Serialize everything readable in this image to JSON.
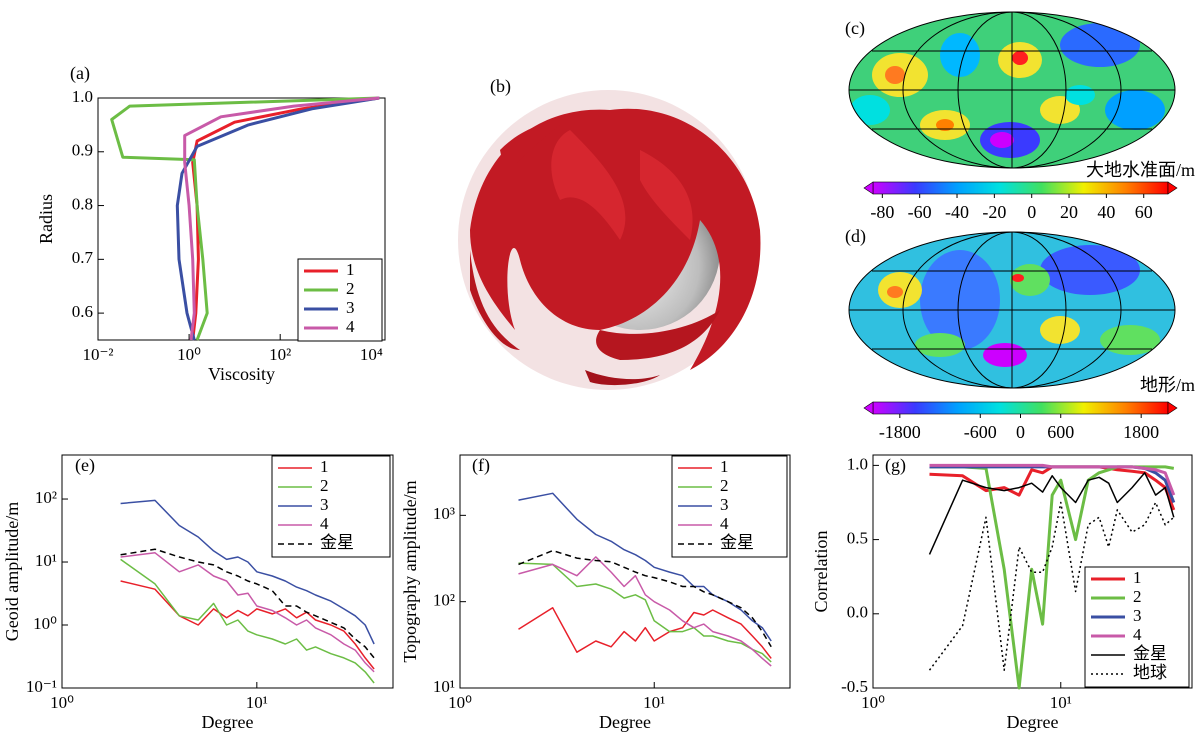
{
  "chart_data": [
    {
      "type": "line",
      "label": "(a)",
      "xlabel": "Viscosity",
      "ylabel": "Radius",
      "xscale": "log",
      "xlim": [
        0.01,
        20000
      ],
      "ylim": [
        0.55,
        1.0
      ],
      "xticks": [
        {
          "value": 0.01,
          "label": "10⁻²"
        },
        {
          "value": 1,
          "label": "10⁰"
        },
        {
          "value": 100,
          "label": "10²"
        },
        {
          "value": 10000,
          "label": "10⁴"
        }
      ],
      "yticks": [
        0.6,
        0.7,
        0.8,
        0.9,
        {
          "value": 1.0,
          "label": "1.0"
        }
      ],
      "legend": "lower right",
      "series": [
        {
          "name": "1",
          "color": "#e8202a",
          "linewidth": 3,
          "x": [
            1.2,
            1.4,
            1.6,
            1.5,
            1.2,
            1.5,
            10,
            300,
            15000
          ],
          "values": [
            0.55,
            0.6,
            0.7,
            0.8,
            0.88,
            0.92,
            0.955,
            0.98,
            1.0
          ]
        },
        {
          "name": "2",
          "color": "#6cbd45",
          "linewidth": 3,
          "x": [
            1.5,
            2.5,
            2.0,
            1.5,
            1.3,
            0.035,
            0.02,
            0.05,
            15000
          ],
          "values": [
            0.55,
            0.6,
            0.7,
            0.8,
            0.885,
            0.89,
            0.96,
            0.985,
            1.0
          ]
        },
        {
          "name": "3",
          "color": "#3a4fa3",
          "linewidth": 3,
          "x": [
            1.3,
            0.9,
            0.6,
            0.55,
            0.7,
            1.5,
            20,
            500,
            15000
          ],
          "values": [
            0.55,
            0.6,
            0.7,
            0.8,
            0.86,
            0.91,
            0.95,
            0.98,
            1.0
          ]
        },
        {
          "name": "4",
          "color": "#c85aa8",
          "linewidth": 3,
          "x": [
            1.1,
            1.3,
            1.2,
            1.0,
            0.8,
            0.8,
            5,
            200,
            15000
          ],
          "values": [
            0.55,
            0.6,
            0.7,
            0.8,
            0.88,
            0.93,
            0.965,
            0.985,
            1.0
          ]
        }
      ]
    },
    {
      "type": "image",
      "label": "(b)"
    },
    {
      "type": "map",
      "label": "(c)",
      "colorbar_label": "大地水准面/m",
      "cblim": [
        -85,
        73
      ],
      "cbticks": [
        -80,
        -60,
        -40,
        -20,
        0,
        20,
        40,
        60
      ],
      "colors": [
        "#cc00ff",
        "#3a3aff",
        "#00a0ff",
        "#00e0e0",
        "#40e060",
        "#f0f000",
        "#ff8000",
        "#ff0000"
      ]
    },
    {
      "type": "map",
      "label": "(d)",
      "colorbar_label": "地形/m",
      "cblim": [
        -2200,
        2200
      ],
      "cbticks": [
        -1800,
        -600,
        0,
        600,
        1800
      ],
      "colors": [
        "#cc00ff",
        "#3a3aff",
        "#00a0ff",
        "#00e0e0",
        "#40e060",
        "#f0f000",
        "#ff8000",
        "#ff0000"
      ]
    },
    {
      "type": "line",
      "label": "(e)",
      "xlabel": "Degree",
      "ylabel": "Geoid amplitude/m",
      "xscale": "log",
      "yscale": "log",
      "xlim": [
        1,
        50
      ],
      "ylim": [
        0.1,
        500
      ],
      "xticks": [
        {
          "value": 1,
          "label": "10⁰"
        },
        {
          "value": 10,
          "label": "10¹"
        }
      ],
      "yticks": [
        {
          "value": 0.1,
          "label": "10⁻¹"
        },
        {
          "value": 1,
          "label": "10⁰"
        },
        {
          "value": 10,
          "label": "10¹"
        },
        {
          "value": 100,
          "label": "10²"
        }
      ],
      "legend": "upper right",
      "x": [
        2,
        3,
        4,
        5,
        6,
        7,
        8,
        9,
        10,
        12,
        14,
        16,
        18,
        20,
        24,
        28,
        32,
        36,
        40
      ],
      "series": [
        {
          "name": "1",
          "color": "#e8202a",
          "linewidth": 1.5,
          "values": [
            5,
            3.7,
            1.4,
            1.0,
            1.8,
            1.3,
            1.7,
            1.4,
            1.8,
            1.5,
            1.8,
            1.3,
            1.6,
            1.2,
            1.0,
            0.8,
            0.5,
            0.3,
            0.2
          ]
        },
        {
          "name": "2",
          "color": "#6cbd45",
          "linewidth": 1.5,
          "values": [
            11,
            4.5,
            1.4,
            1.2,
            2.2,
            1.0,
            1.2,
            0.8,
            0.7,
            0.6,
            0.5,
            0.6,
            0.4,
            0.45,
            0.35,
            0.3,
            0.25,
            0.18,
            0.12
          ]
        },
        {
          "name": "3",
          "color": "#3a4fa3",
          "linewidth": 1.5,
          "values": [
            85,
            95,
            38,
            25,
            15,
            11,
            12,
            10,
            7,
            6,
            5,
            4,
            3.5,
            3,
            2.4,
            1.8,
            1.4,
            1.0,
            0.5
          ]
        },
        {
          "name": "4",
          "color": "#c85aa8",
          "linewidth": 1.5,
          "values": [
            12,
            14,
            7,
            9,
            6,
            5,
            3,
            3.2,
            2,
            1.7,
            1.3,
            1.0,
            1.2,
            0.9,
            0.7,
            0.5,
            0.4,
            0.25,
            0.18
          ]
        },
        {
          "name": "金星",
          "color": "#000000",
          "linewidth": 1.5,
          "dash": "dashed",
          "values": [
            13,
            16,
            12,
            10,
            9,
            7,
            6,
            5,
            4.5,
            3.5,
            2,
            2,
            1.6,
            1.4,
            1.1,
            0.9,
            0.6,
            0.45,
            0.3
          ]
        }
      ]
    },
    {
      "type": "line",
      "label": "(f)",
      "xlabel": "Degree",
      "ylabel": "Topography amplitude/m",
      "xscale": "log",
      "yscale": "log",
      "xlim": [
        1,
        50
      ],
      "ylim": [
        10,
        5000
      ],
      "xticks": [
        {
          "value": 1,
          "label": "10⁰"
        },
        {
          "value": 10,
          "label": "10¹"
        }
      ],
      "yticks": [
        {
          "value": 10,
          "label": "10¹"
        },
        {
          "value": 100,
          "label": "10²"
        },
        {
          "value": 1000,
          "label": "10³"
        }
      ],
      "legend": "upper right",
      "x": [
        2,
        3,
        4,
        5,
        6,
        7,
        8,
        9,
        10,
        12,
        14,
        16,
        18,
        20,
        24,
        28,
        32,
        36,
        40
      ],
      "series": [
        {
          "name": "1",
          "color": "#e8202a",
          "linewidth": 1.5,
          "values": [
            48,
            85,
            26,
            35,
            30,
            45,
            35,
            50,
            35,
            45,
            50,
            75,
            70,
            80,
            65,
            55,
            40,
            30,
            22
          ]
        },
        {
          "name": "2",
          "color": "#6cbd45",
          "linewidth": 1.5,
          "values": [
            280,
            270,
            150,
            160,
            140,
            110,
            120,
            105,
            60,
            45,
            45,
            50,
            40,
            40,
            35,
            33,
            28,
            25,
            20
          ]
        },
        {
          "name": "3",
          "color": "#3a4fa3",
          "linewidth": 1.5,
          "values": [
            1500,
            1800,
            900,
            600,
            500,
            400,
            350,
            300,
            250,
            220,
            200,
            150,
            150,
            120,
            100,
            80,
            60,
            50,
            35
          ]
        },
        {
          "name": "4",
          "color": "#c85aa8",
          "linewidth": 1.5,
          "values": [
            210,
            270,
            200,
            330,
            220,
            150,
            200,
            120,
            100,
            80,
            60,
            50,
            55,
            45,
            40,
            35,
            28,
            22,
            18
          ]
        },
        {
          "name": "金星",
          "color": "#000000",
          "linewidth": 1.5,
          "dash": "dashed",
          "values": [
            270,
            390,
            320,
            300,
            290,
            250,
            220,
            200,
            190,
            170,
            150,
            150,
            130,
            120,
            100,
            85,
            65,
            45,
            30
          ]
        }
      ]
    },
    {
      "type": "line",
      "label": "(g)",
      "xlabel": "Degree",
      "ylabel": "Correlation",
      "xscale": "log",
      "xlim": [
        1,
        50
      ],
      "ylim": [
        -0.5,
        1.07
      ],
      "xticks": [
        {
          "value": 1,
          "label": "10⁰"
        },
        {
          "value": 10,
          "label": "10¹"
        }
      ],
      "yticks": [
        -0.5,
        {
          "value": 0,
          "label": "0.0"
        },
        0.5,
        {
          "value": 1,
          "label": "1.0"
        }
      ],
      "legend": "lower right",
      "x": [
        2,
        3,
        4,
        5,
        6,
        7,
        8,
        9,
        10,
        12,
        14,
        16,
        18,
        20,
        24,
        28,
        32,
        36,
        40
      ],
      "series": [
        {
          "name": "1",
          "color": "#e8202a",
          "linewidth": 3,
          "values": [
            0.94,
            0.93,
            0.83,
            0.85,
            0.8,
            0.97,
            0.95,
            0.99,
            0.99,
            0.99,
            0.99,
            0.99,
            0.98,
            0.97,
            0.96,
            0.95,
            0.9,
            0.85,
            0.7
          ]
        },
        {
          "name": "2",
          "color": "#6cbd45",
          "linewidth": 3,
          "values": [
            0.99,
            0.99,
            0.98,
            0.3,
            -0.5,
            0.3,
            -0.07,
            0.8,
            0.9,
            0.5,
            0.9,
            0.95,
            0.97,
            0.99,
            0.99,
            0.99,
            0.99,
            0.99,
            0.98
          ]
        },
        {
          "name": "3",
          "color": "#3a4fa3",
          "linewidth": 3,
          "values": [
            0.99,
            0.99,
            0.99,
            0.99,
            0.99,
            0.99,
            0.99,
            0.99,
            0.99,
            0.99,
            0.99,
            0.99,
            0.99,
            0.99,
            0.99,
            0.98,
            0.95,
            0.9,
            0.75
          ]
        },
        {
          "name": "4",
          "color": "#c85aa8",
          "linewidth": 3,
          "values": [
            1.0,
            1.0,
            1.0,
            1.0,
            1.0,
            1.0,
            1.0,
            0.99,
            0.99,
            0.99,
            0.99,
            0.99,
            0.99,
            0.99,
            0.99,
            0.98,
            0.97,
            0.95,
            0.8
          ]
        },
        {
          "name": "金星",
          "color": "#000000",
          "linewidth": 1.5,
          "values": [
            0.4,
            0.9,
            0.85,
            0.83,
            0.85,
            0.88,
            0.82,
            0.93,
            0.85,
            0.75,
            0.9,
            0.92,
            0.88,
            0.75,
            0.85,
            0.95,
            0.8,
            0.85,
            0.65
          ]
        },
        {
          "name": "地球",
          "color": "#000000",
          "linewidth": 1.5,
          "dash": "dotted",
          "values": [
            -0.38,
            -0.08,
            0.65,
            -0.38,
            0.45,
            0.28,
            0.28,
            0.45,
            0.75,
            0.15,
            0.6,
            0.65,
            0.45,
            0.7,
            0.55,
            0.6,
            0.75,
            0.6,
            0.65
          ]
        }
      ]
    }
  ]
}
